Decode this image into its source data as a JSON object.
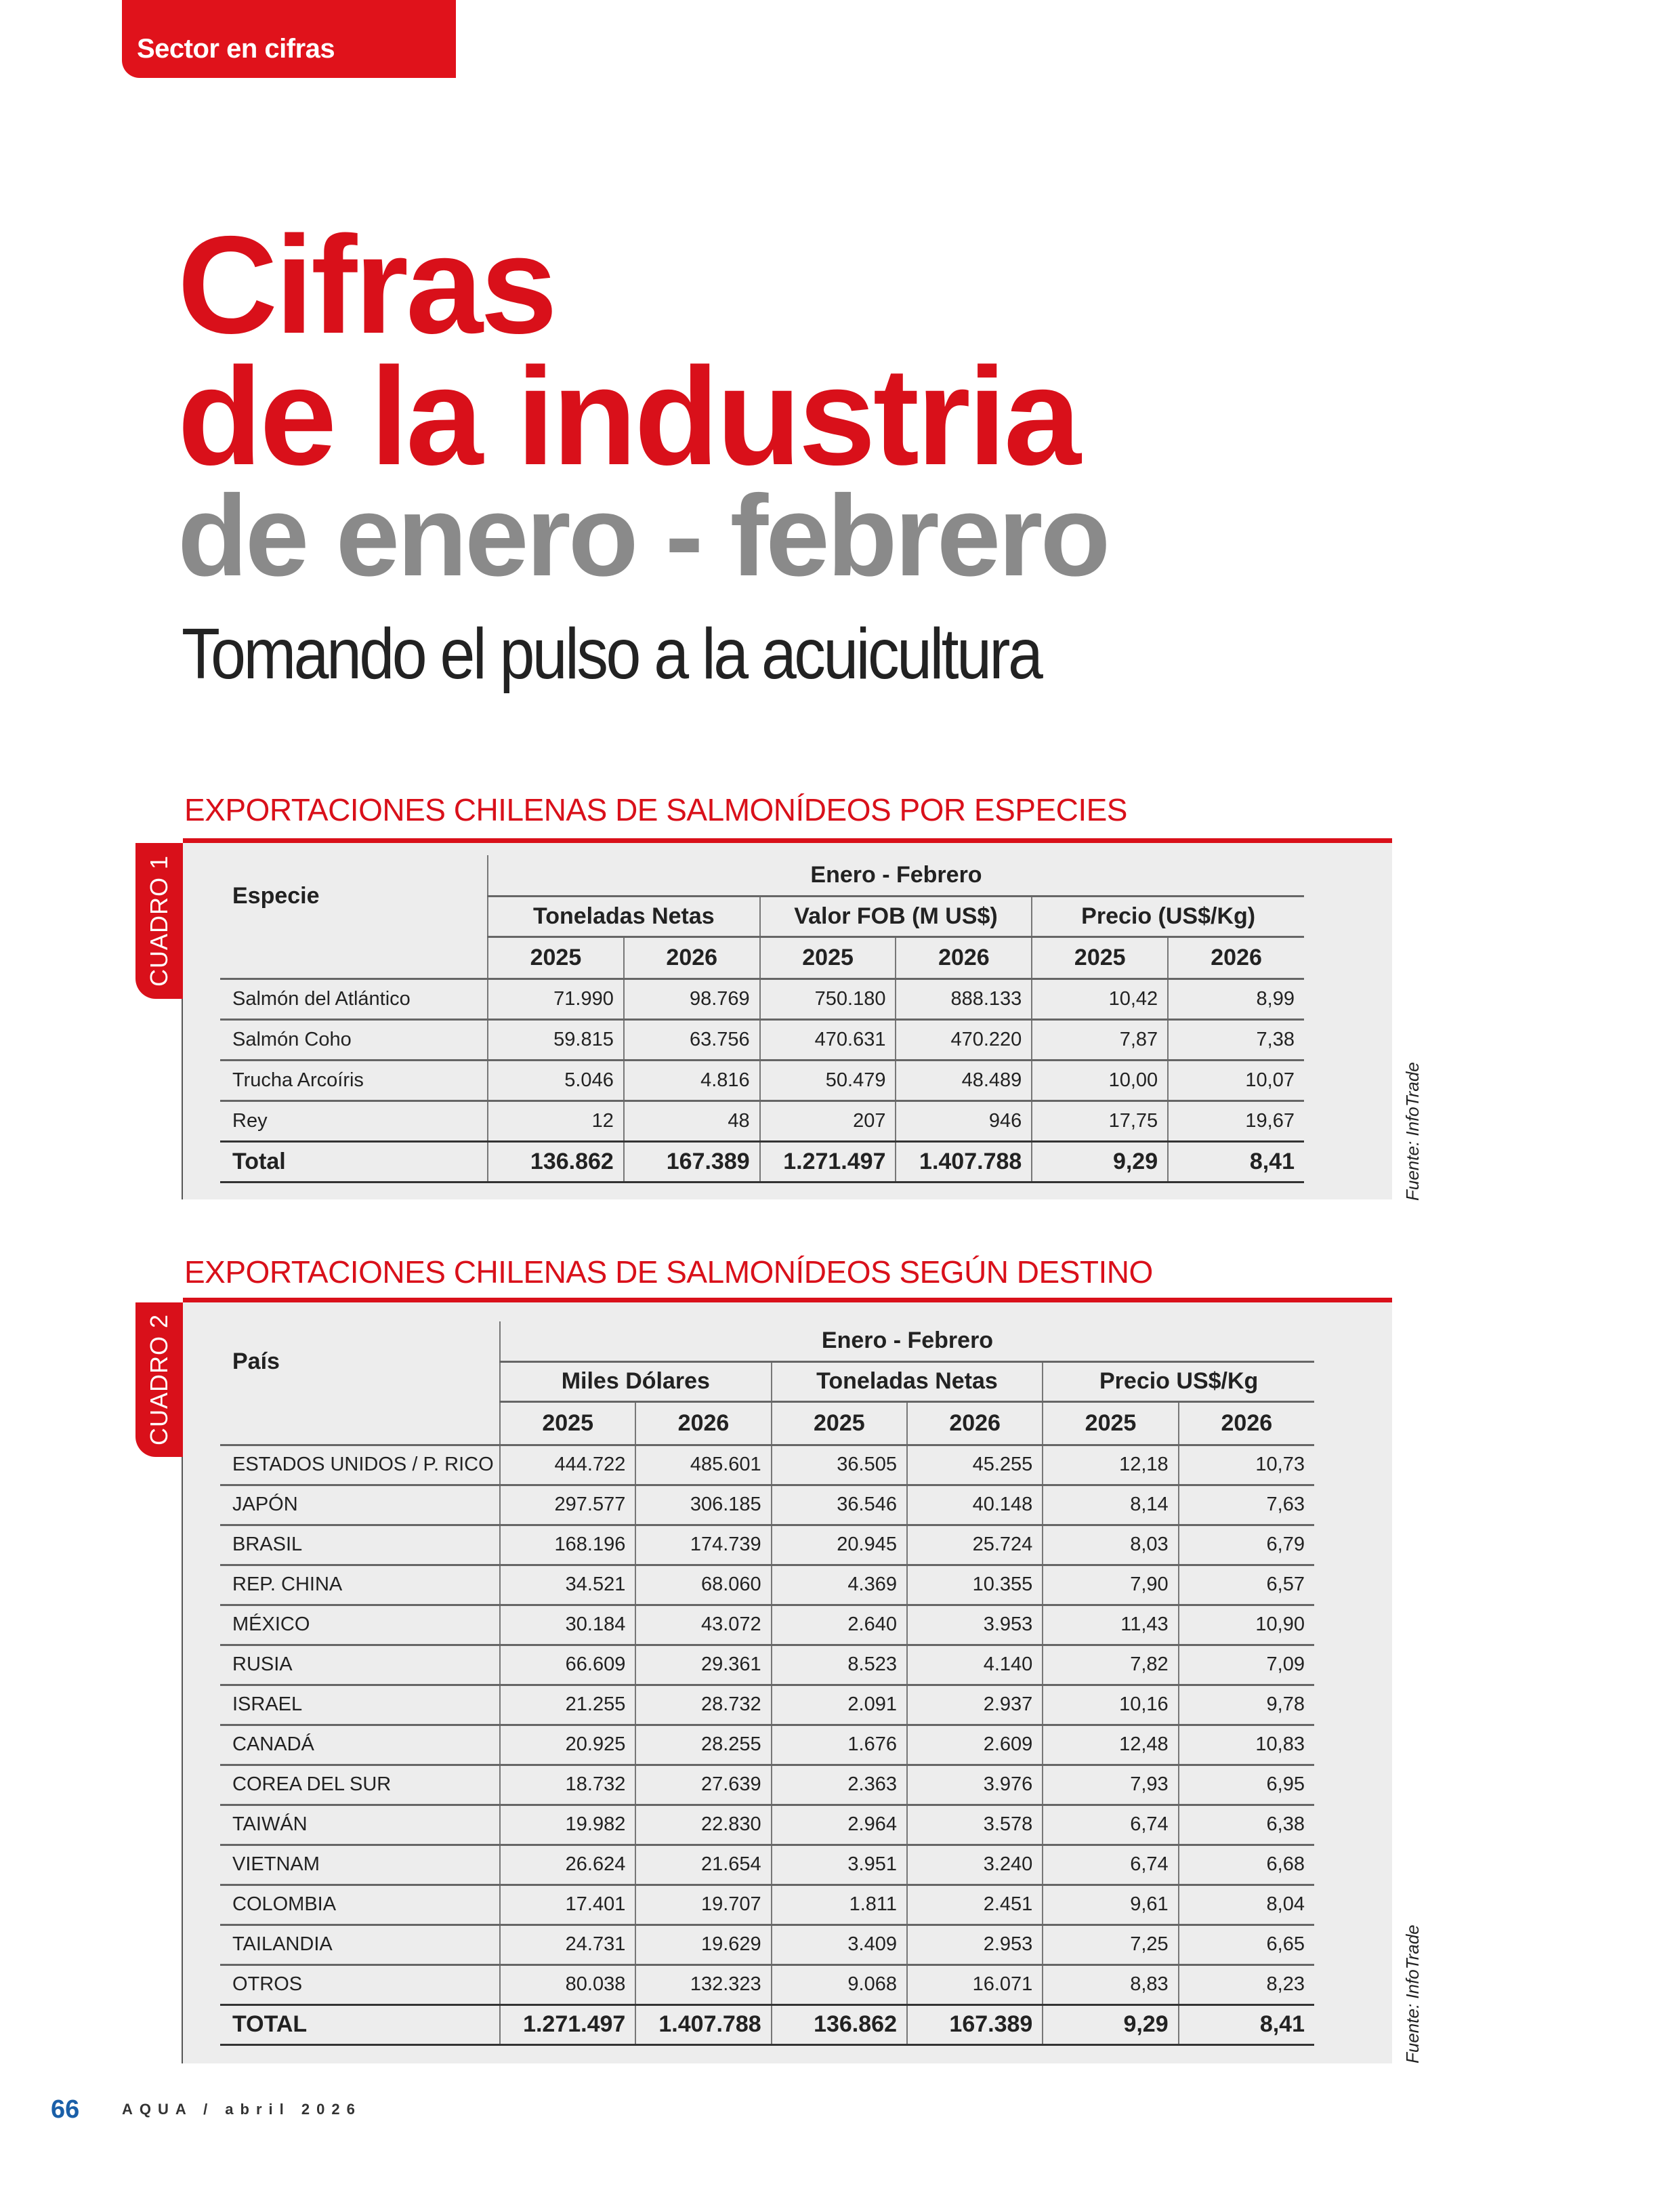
{
  "section_tab": "Sector en cifras",
  "title": {
    "line1": "Cifras",
    "line2": "de la industria",
    "line3": "de enero - febrero",
    "subtitle": "Tomando el pulso a la acuicultura"
  },
  "table1": {
    "heading": "EXPORTACIONES CHILENAS DE SALMONÍDEOS POR ESPECIES",
    "cuadro": "CUADRO 1",
    "source": "Fuente: InfoTrade",
    "row_header": "Especie",
    "period": "Enero - Febrero",
    "groups": [
      "Toneladas Netas",
      "Valor FOB (M US$)",
      "Precio (US$/Kg)"
    ],
    "years": [
      "2025",
      "2026",
      "2025",
      "2026",
      "2025",
      "2026"
    ],
    "rows": [
      {
        "label": "Salmón del Atlántico",
        "values": [
          "71.990",
          "98.769",
          "750.180",
          "888.133",
          "10,42",
          "8,99"
        ]
      },
      {
        "label": "Salmón Coho",
        "values": [
          "59.815",
          "63.756",
          "470.631",
          "470.220",
          "7,87",
          "7,38"
        ]
      },
      {
        "label": "Trucha Arcoíris",
        "values": [
          "5.046",
          "4.816",
          "50.479",
          "48.489",
          "10,00",
          "10,07"
        ]
      },
      {
        "label": "Rey",
        "values": [
          "12",
          "48",
          "207",
          "946",
          "17,75",
          "19,67"
        ]
      }
    ],
    "total": {
      "label": "Total",
      "values": [
        "136.862",
        "167.389",
        "1.271.497",
        "1.407.788",
        "9,29",
        "8,41"
      ]
    }
  },
  "table2": {
    "heading": "EXPORTACIONES CHILENAS DE SALMONÍDEOS SEGÚN DESTINO",
    "cuadro": "CUADRO 2",
    "source": "Fuente: InfoTrade",
    "row_header": "País",
    "period": "Enero - Febrero",
    "groups": [
      "Miles Dólares",
      "Toneladas Netas",
      "Precio US$/Kg"
    ],
    "years": [
      "2025",
      "2026",
      "2025",
      "2026",
      "2025",
      "2026"
    ],
    "rows": [
      {
        "label": "ESTADOS UNIDOS / P. RICO",
        "values": [
          "444.722",
          "485.601",
          "36.505",
          "45.255",
          "12,18",
          "10,73"
        ]
      },
      {
        "label": "JAPÓN",
        "values": [
          "297.577",
          "306.185",
          "36.546",
          "40.148",
          "8,14",
          "7,63"
        ]
      },
      {
        "label": "BRASIL",
        "values": [
          "168.196",
          "174.739",
          "20.945",
          "25.724",
          "8,03",
          "6,79"
        ]
      },
      {
        "label": "REP. CHINA",
        "values": [
          "34.521",
          "68.060",
          "4.369",
          "10.355",
          "7,90",
          "6,57"
        ]
      },
      {
        "label": "MÉXICO",
        "values": [
          "30.184",
          "43.072",
          "2.640",
          "3.953",
          "11,43",
          "10,90"
        ]
      },
      {
        "label": "RUSIA",
        "values": [
          "66.609",
          "29.361",
          "8.523",
          "4.140",
          "7,82",
          "7,09"
        ]
      },
      {
        "label": "ISRAEL",
        "values": [
          "21.255",
          "28.732",
          "2.091",
          "2.937",
          "10,16",
          "9,78"
        ]
      },
      {
        "label": "CANADÁ",
        "values": [
          "20.925",
          "28.255",
          "1.676",
          "2.609",
          "12,48",
          "10,83"
        ]
      },
      {
        "label": "COREA DEL SUR",
        "values": [
          "18.732",
          "27.639",
          "2.363",
          "3.976",
          "7,93",
          "6,95"
        ]
      },
      {
        "label": "TAIWÁN",
        "values": [
          "19.982",
          "22.830",
          "2.964",
          "3.578",
          "6,74",
          "6,38"
        ]
      },
      {
        "label": "VIETNAM",
        "values": [
          "26.624",
          "21.654",
          "3.951",
          "3.240",
          "6,74",
          "6,68"
        ]
      },
      {
        "label": "COLOMBIA",
        "values": [
          "17.401",
          "19.707",
          "1.811",
          "2.451",
          "9,61",
          "8,04"
        ]
      },
      {
        "label": "TAILANDIA",
        "values": [
          "24.731",
          "19.629",
          "3.409",
          "2.953",
          "7,25",
          "6,65"
        ]
      },
      {
        "label": "OTROS",
        "values": [
          "80.038",
          "132.323",
          "9.068",
          "16.071",
          "8,83",
          "8,23"
        ]
      }
    ],
    "total": {
      "label": "TOTAL",
      "values": [
        "1.271.497",
        "1.407.788",
        "136.862",
        "167.389",
        "9,29",
        "8,41"
      ]
    }
  },
  "footer": {
    "page": "66",
    "magazine": "AQUA / abril 2026"
  }
}
